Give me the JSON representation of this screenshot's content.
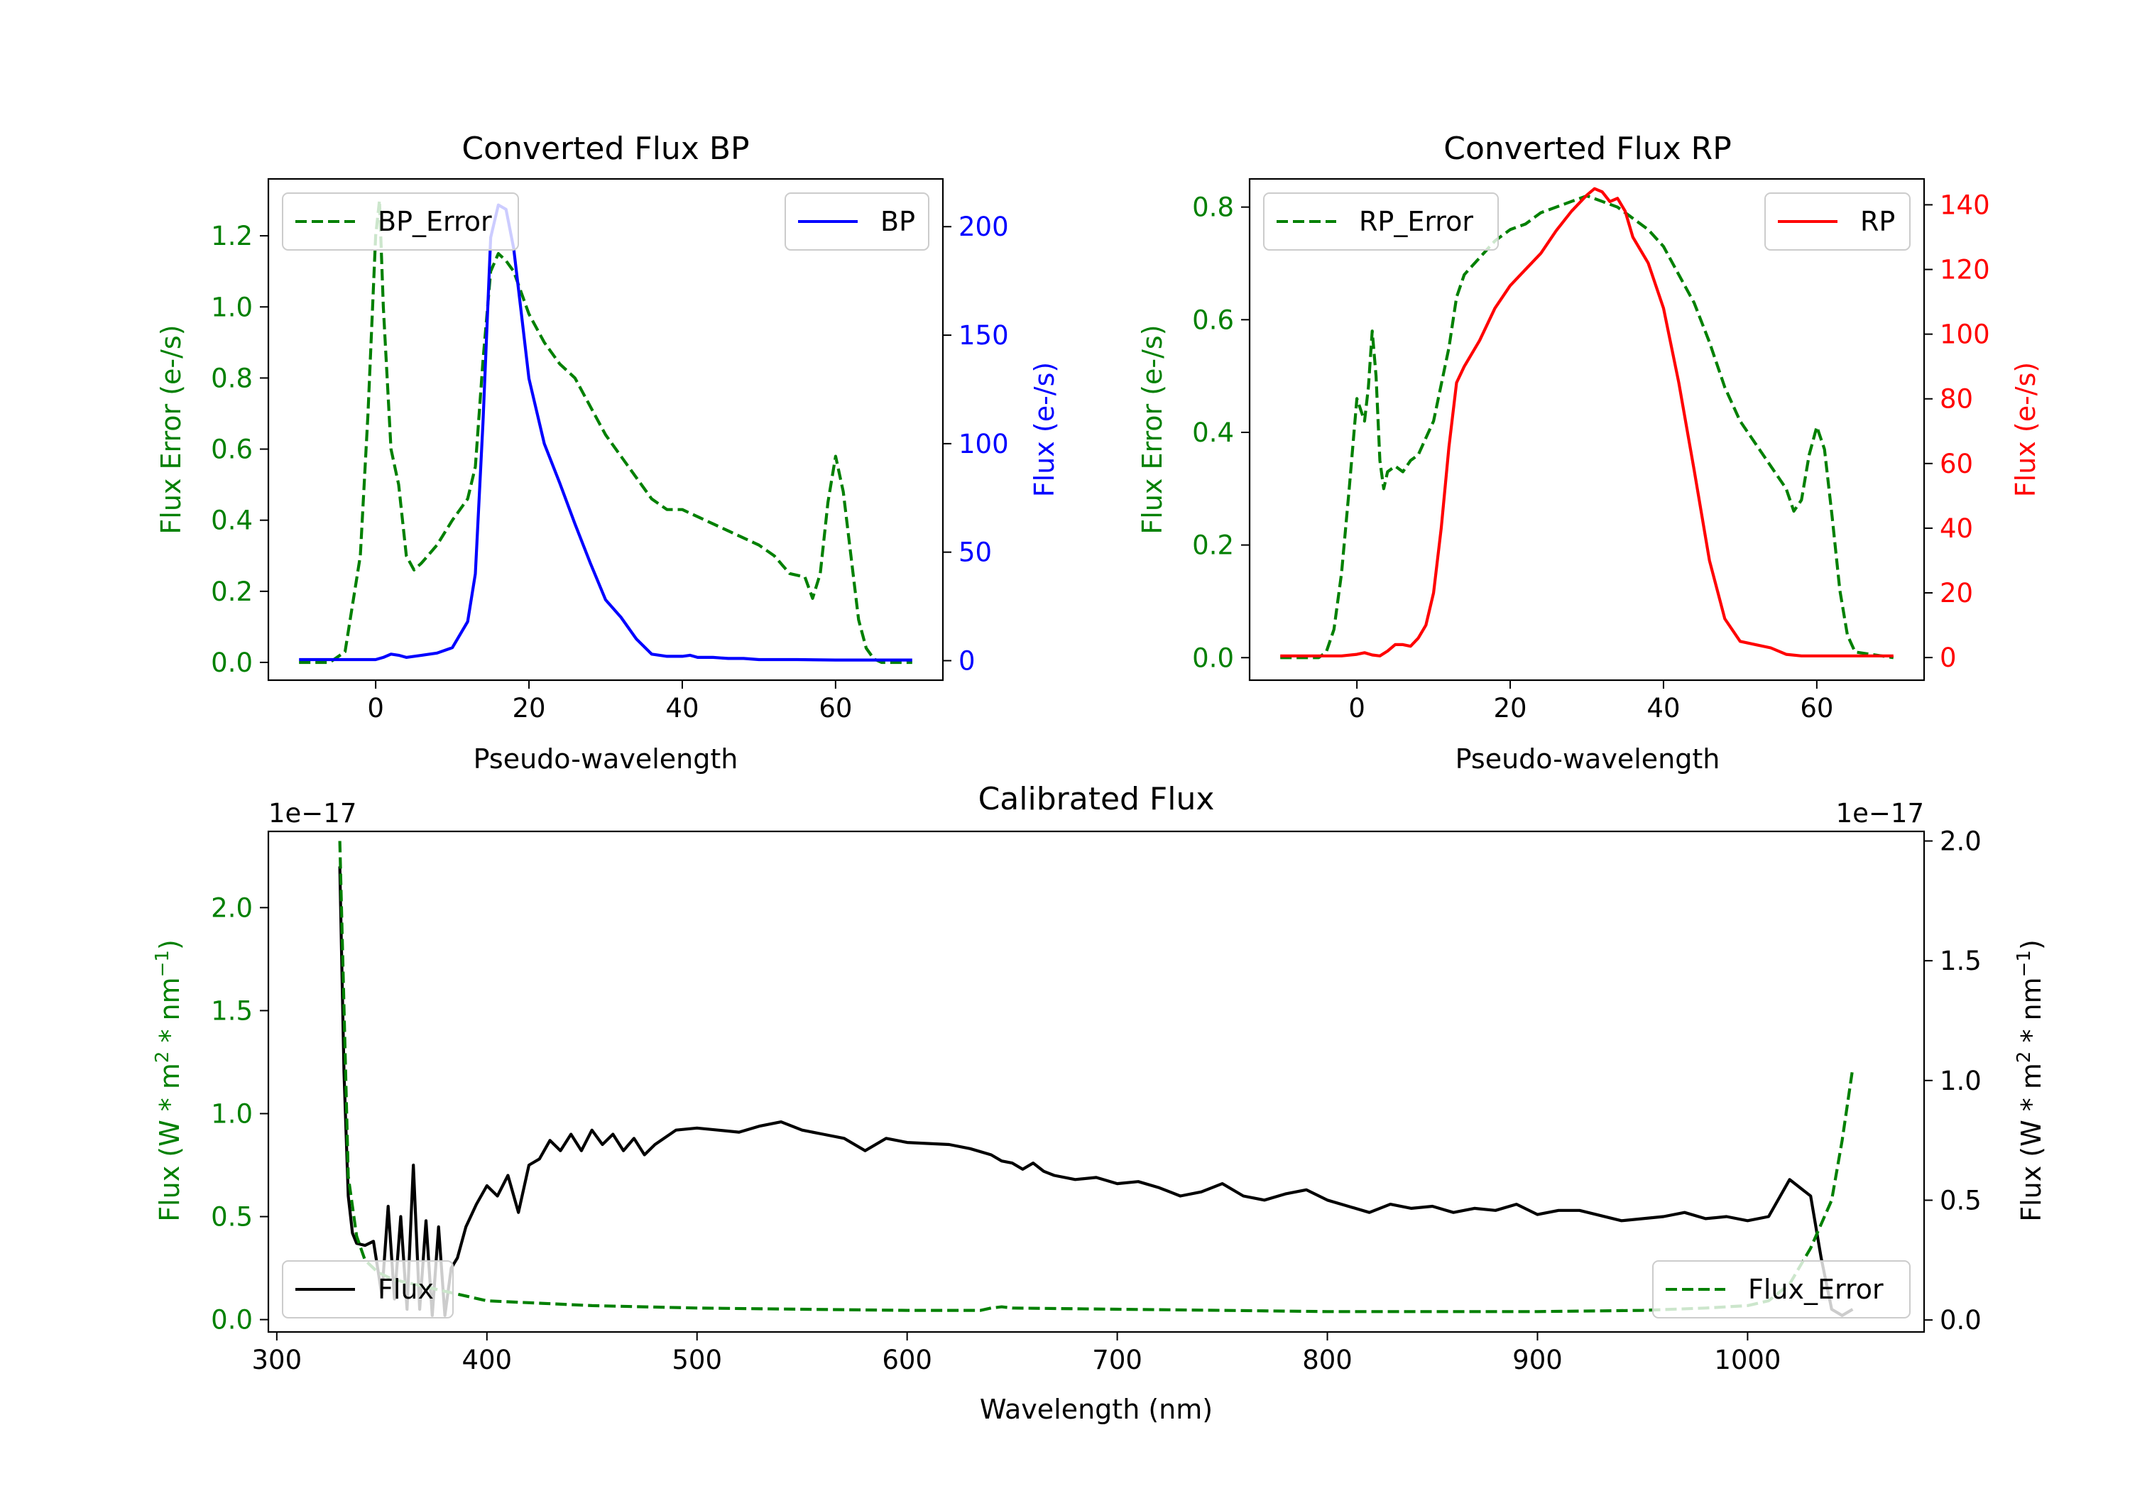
{
  "chart_data": [
    {
      "id": "bp",
      "type": "line",
      "title": "Converted Flux BP",
      "xlabel": "Pseudo-wavelength",
      "ylabel_left": "Flux Error (e-/s)",
      "ylabel_right": "Flux (e-/s)",
      "xlim": [
        -14,
        74
      ],
      "ylim_left": [
        -0.05,
        1.36
      ],
      "ylim_right": [
        -9,
        222
      ],
      "xticks": [
        "0",
        "20",
        "40",
        "60"
      ],
      "yticks_left": [
        "0.0",
        "0.2",
        "0.4",
        "0.6",
        "0.8",
        "1.0",
        "1.2"
      ],
      "yticks_right": [
        "0",
        "50",
        "100",
        "150",
        "200"
      ],
      "left_color": "#008000",
      "right_color": "#0000ff",
      "series": [
        {
          "name": "BP_Error",
          "axis": "left",
          "style": "dashed",
          "color": "#008000",
          "x": [
            -10,
            -6,
            -4,
            -2,
            -1,
            0,
            0.5,
            1,
            2,
            3,
            4,
            5,
            6,
            8,
            10,
            12,
            13,
            14,
            15,
            16,
            17,
            18,
            20,
            22,
            24,
            26,
            28,
            30,
            32,
            34,
            36,
            38,
            40,
            42,
            44,
            46,
            48,
            50,
            52,
            54,
            56,
            57,
            58,
            59,
            60,
            61,
            62,
            63,
            64,
            65,
            66,
            70
          ],
          "values": [
            0.0,
            0.0,
            0.03,
            0.3,
            0.7,
            1.2,
            1.3,
            1.0,
            0.6,
            0.5,
            0.3,
            0.26,
            0.28,
            0.33,
            0.4,
            0.46,
            0.55,
            0.85,
            1.1,
            1.15,
            1.13,
            1.1,
            0.98,
            0.9,
            0.84,
            0.8,
            0.72,
            0.64,
            0.58,
            0.52,
            0.46,
            0.43,
            0.43,
            0.41,
            0.39,
            0.37,
            0.35,
            0.33,
            0.3,
            0.25,
            0.24,
            0.18,
            0.25,
            0.45,
            0.58,
            0.48,
            0.3,
            0.12,
            0.04,
            0.01,
            0.0,
            0.0
          ]
        },
        {
          "name": "BP",
          "axis": "right",
          "style": "solid",
          "color": "#0000ff",
          "x": [
            -10,
            -2,
            0,
            1,
            2,
            3,
            4,
            6,
            8,
            10,
            12,
            13,
            14,
            15,
            16,
            17,
            18,
            19,
            20,
            22,
            24,
            26,
            28,
            30,
            32,
            34,
            36,
            38,
            40,
            41,
            42,
            44,
            46,
            48,
            50,
            55,
            60,
            65,
            70
          ],
          "values": [
            0.5,
            0.5,
            0.5,
            1.5,
            3,
            2.5,
            1.5,
            2.5,
            3.5,
            6,
            18,
            40,
            110,
            195,
            210,
            208,
            190,
            160,
            130,
            100,
            82,
            63,
            45,
            28,
            20,
            10,
            3,
            2,
            2,
            2.5,
            1.5,
            1.5,
            1,
            1,
            0.5,
            0.5,
            0.3,
            0.3,
            0.3
          ]
        }
      ],
      "legend": [
        {
          "label": "BP_Error",
          "position": "upper left"
        },
        {
          "label": "BP",
          "position": "upper right"
        }
      ]
    },
    {
      "id": "rp",
      "type": "line",
      "title": "Converted Flux RP",
      "xlabel": "Pseudo-wavelength",
      "ylabel_left": "Flux Error (e-/s)",
      "ylabel_right": "Flux (e-/s)",
      "xlim": [
        -14,
        74
      ],
      "ylim_left": [
        -0.04,
        0.85
      ],
      "ylim_right": [
        -7,
        148
      ],
      "xticks": [
        "0",
        "20",
        "40",
        "60"
      ],
      "yticks_left": [
        "0.0",
        "0.2",
        "0.4",
        "0.6",
        "0.8"
      ],
      "yticks_right": [
        "0",
        "20",
        "40",
        "60",
        "80",
        "100",
        "120",
        "140"
      ],
      "left_color": "#008000",
      "right_color": "#ff0000",
      "series": [
        {
          "name": "RP_Error",
          "axis": "left",
          "style": "dashed",
          "color": "#008000",
          "x": [
            -10,
            -5,
            -4,
            -3,
            -2,
            -1,
            0,
            1,
            1.5,
            2,
            2.5,
            3,
            3.5,
            4,
            5,
            6,
            7,
            8,
            10,
            12,
            13,
            14,
            16,
            18,
            20,
            22,
            24,
            26,
            28,
            30,
            32,
            34,
            36,
            38,
            40,
            42,
            44,
            46,
            48,
            50,
            52,
            54,
            55,
            56,
            57,
            58,
            59,
            60,
            61,
            62,
            63,
            64,
            65,
            70
          ],
          "values": [
            0.0,
            0.0,
            0.01,
            0.05,
            0.15,
            0.3,
            0.46,
            0.42,
            0.48,
            0.58,
            0.5,
            0.35,
            0.3,
            0.33,
            0.34,
            0.33,
            0.35,
            0.36,
            0.42,
            0.55,
            0.64,
            0.68,
            0.71,
            0.74,
            0.76,
            0.77,
            0.79,
            0.8,
            0.81,
            0.82,
            0.81,
            0.8,
            0.78,
            0.76,
            0.73,
            0.68,
            0.63,
            0.56,
            0.48,
            0.42,
            0.38,
            0.34,
            0.32,
            0.3,
            0.26,
            0.28,
            0.36,
            0.41,
            0.37,
            0.25,
            0.12,
            0.04,
            0.01,
            0.0
          ]
        },
        {
          "name": "RP",
          "axis": "right",
          "style": "solid",
          "color": "#ff0000",
          "x": [
            -10,
            -2,
            0,
            1,
            2,
            3,
            4,
            5,
            6,
            7,
            8,
            9,
            10,
            11,
            12,
            13,
            14,
            16,
            18,
            20,
            22,
            24,
            26,
            28,
            30,
            31,
            32,
            33,
            34,
            35,
            36,
            38,
            40,
            42,
            44,
            46,
            48,
            50,
            52,
            54,
            56,
            58,
            60,
            65,
            70
          ],
          "values": [
            0.5,
            0.5,
            1,
            1.5,
            0.8,
            0.5,
            2,
            4,
            4,
            3.5,
            6,
            10,
            20,
            40,
            65,
            85,
            90,
            98,
            108,
            115,
            120,
            125,
            132,
            138,
            143,
            145,
            144,
            141,
            142,
            138,
            130,
            122,
            108,
            85,
            58,
            30,
            12,
            5,
            4,
            3,
            1,
            0.5,
            0.5,
            0.5,
            0.5
          ]
        }
      ],
      "legend": [
        {
          "label": "RP_Error",
          "position": "upper left"
        },
        {
          "label": "RP",
          "position": "upper right"
        }
      ]
    },
    {
      "id": "calibrated",
      "type": "line",
      "title": "Calibrated Flux",
      "xlabel": "Wavelength (nm)",
      "ylabel_left": "Flux (W * m^2 * nm^-1)",
      "ylabel_right": "Flux (W * m^2 * nm^-1)",
      "offset_left": "1e−17",
      "offset_right": "1e−17",
      "xlim": [
        296,
        1084
      ],
      "ylim_left": [
        -0.06,
        2.37
      ],
      "ylim_right": [
        -0.05,
        2.04
      ],
      "xticks": [
        "300",
        "400",
        "500",
        "600",
        "700",
        "800",
        "900",
        "1000"
      ],
      "yticks_left": [
        "0.0",
        "0.5",
        "1.0",
        "1.5",
        "2.0"
      ],
      "yticks_right": [
        "0.0",
        "0.5",
        "1.0",
        "1.5",
        "2.0"
      ],
      "left_color": "#008000",
      "right_color": "#000000",
      "series": [
        {
          "name": "Flux",
          "axis": "left",
          "style": "solid",
          "color": "#000000",
          "x": [
            330,
            332,
            334,
            336,
            338,
            342,
            346,
            350,
            353,
            356,
            359,
            362,
            365,
            368,
            371,
            374,
            377,
            380,
            383,
            386,
            390,
            395,
            400,
            405,
            410,
            415,
            420,
            425,
            430,
            435,
            440,
            445,
            450,
            455,
            460,
            465,
            470,
            475,
            480,
            490,
            500,
            510,
            520,
            530,
            540,
            550,
            560,
            570,
            580,
            590,
            600,
            620,
            630,
            640,
            645,
            650,
            655,
            660,
            665,
            670,
            680,
            690,
            700,
            710,
            720,
            730,
            740,
            750,
            760,
            770,
            780,
            790,
            800,
            810,
            820,
            830,
            840,
            850,
            860,
            870,
            880,
            890,
            900,
            910,
            920,
            940,
            960,
            970,
            980,
            990,
            1000,
            1010,
            1020,
            1030,
            1035,
            1040,
            1045,
            1050
          ],
          "values": [
            2.2,
            1.2,
            0.6,
            0.42,
            0.37,
            0.36,
            0.38,
            0.12,
            0.55,
            0.1,
            0.5,
            0.05,
            0.75,
            0.05,
            0.48,
            0.02,
            0.45,
            0.02,
            0.25,
            0.3,
            0.45,
            0.56,
            0.65,
            0.6,
            0.7,
            0.52,
            0.75,
            0.78,
            0.87,
            0.82,
            0.9,
            0.82,
            0.92,
            0.85,
            0.9,
            0.82,
            0.88,
            0.8,
            0.85,
            0.92,
            0.93,
            0.92,
            0.91,
            0.94,
            0.96,
            0.92,
            0.9,
            0.88,
            0.82,
            0.88,
            0.86,
            0.85,
            0.83,
            0.8,
            0.77,
            0.76,
            0.73,
            0.76,
            0.72,
            0.7,
            0.68,
            0.69,
            0.66,
            0.67,
            0.64,
            0.6,
            0.62,
            0.66,
            0.6,
            0.58,
            0.61,
            0.63,
            0.58,
            0.55,
            0.52,
            0.56,
            0.54,
            0.55,
            0.52,
            0.54,
            0.53,
            0.56,
            0.51,
            0.53,
            0.53,
            0.48,
            0.5,
            0.52,
            0.49,
            0.5,
            0.48,
            0.5,
            0.68,
            0.6,
            0.3,
            0.05,
            0.02,
            0.05
          ]
        },
        {
          "name": "Flux_Error",
          "axis": "right",
          "style": "dashed",
          "color": "#008000",
          "x": [
            330,
            334,
            338,
            342,
            348,
            355,
            365,
            380,
            400,
            450,
            500,
            550,
            600,
            635,
            640,
            645,
            650,
            700,
            750,
            800,
            850,
            900,
            950,
            980,
            1000,
            1010,
            1020,
            1030,
            1040,
            1045,
            1050
          ],
          "values": [
            2.0,
            0.6,
            0.35,
            0.25,
            0.2,
            0.17,
            0.15,
            0.12,
            0.08,
            0.06,
            0.05,
            0.045,
            0.04,
            0.04,
            0.05,
            0.055,
            0.05,
            0.045,
            0.04,
            0.035,
            0.035,
            0.035,
            0.04,
            0.05,
            0.06,
            0.08,
            0.15,
            0.3,
            0.5,
            0.75,
            1.05
          ]
        }
      ],
      "legend": [
        {
          "label": "Flux",
          "position": "lower left"
        },
        {
          "label": "Flux_Error",
          "position": "lower right"
        }
      ]
    }
  ]
}
